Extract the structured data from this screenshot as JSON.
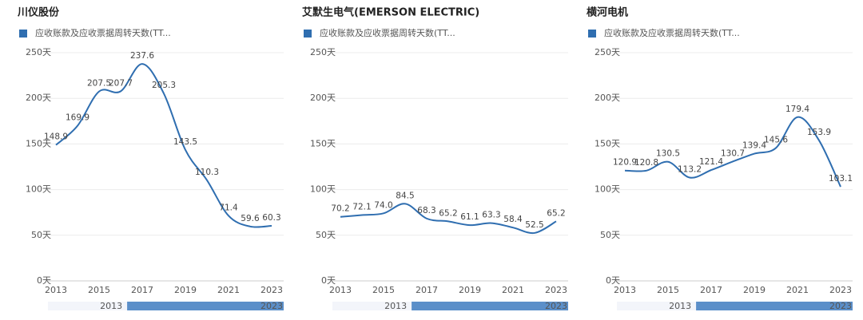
{
  "chart_data": [
    {
      "type": "line",
      "title": "川仪股份",
      "categories": [
        "2013",
        null,
        "2015",
        null,
        "2017",
        null,
        "2019",
        null,
        "2021",
        null,
        "2023"
      ],
      "series": [
        {
          "name": "应收账款及应收票据周转天数(TT...",
          "color": "#2f6eb0",
          "values": [
            148.9,
            169.9,
            207.5,
            207.7,
            237.6,
            205.3,
            143.5,
            110.3,
            71.4,
            59.6,
            60.3
          ],
          "value_labels": [
            "148.9",
            "169.9",
            "207.5",
            "207.7",
            "237.6",
            "205.3",
            "143.5",
            "110.3",
            "71.4",
            "59.6",
            "60.3"
          ]
        }
      ],
      "ylim": [
        0,
        250
      ],
      "yticks": [
        {
          "value": 0,
          "label": "0天"
        },
        {
          "value": 50,
          "label": "50天"
        },
        {
          "value": 100,
          "label": "100天"
        },
        {
          "value": 150,
          "label": "150天"
        },
        {
          "value": 200,
          "label": "200天"
        },
        {
          "value": 250,
          "label": "250天"
        }
      ],
      "grid": true,
      "slider": {
        "start": "2013",
        "end": "2023"
      }
    },
    {
      "type": "line",
      "title": "艾默生电气(EMERSON ELECTRIC)",
      "categories": [
        "2013",
        null,
        "2015",
        null,
        "2017",
        null,
        "2019",
        null,
        "2021",
        null,
        "2023"
      ],
      "series": [
        {
          "name": "应收账款及应收票据周转天数(TT...",
          "color": "#2f6eb0",
          "values": [
            70.2,
            72.1,
            74.0,
            84.5,
            68.3,
            65.2,
            61.1,
            63.3,
            58.4,
            52.5,
            65.2
          ],
          "value_labels": [
            "70.2",
            "72.1",
            "74.0",
            "84.5",
            "68.3",
            "65.2",
            "61.1",
            "63.3",
            "58.4",
            "52.5",
            "65.2"
          ]
        }
      ],
      "ylim": [
        0,
        250
      ],
      "yticks": [
        {
          "value": 0,
          "label": "0天"
        },
        {
          "value": 50,
          "label": "50天"
        },
        {
          "value": 100,
          "label": "100天"
        },
        {
          "value": 150,
          "label": "150天"
        },
        {
          "value": 200,
          "label": "200天"
        },
        {
          "value": 250,
          "label": "250天"
        }
      ],
      "grid": true,
      "slider": {
        "start": "2013",
        "end": "2023"
      }
    },
    {
      "type": "line",
      "title": "横河电机",
      "categories": [
        "2013",
        null,
        "2015",
        null,
        "2017",
        null,
        "2019",
        null,
        "2021",
        null,
        "2023"
      ],
      "series": [
        {
          "name": "应收账款及应收票据周转天数(TT...",
          "color": "#2f6eb0",
          "values": [
            120.9,
            120.8,
            130.5,
            113.2,
            121.4,
            130.7,
            139.4,
            145.6,
            179.4,
            153.9,
            103.1
          ],
          "value_labels": [
            "120.9",
            "120.8",
            "130.5",
            "113.2",
            "121.4",
            "130.7",
            "139.4",
            "145.6",
            "179.4",
            "153.9",
            "103.1"
          ]
        }
      ],
      "ylim": [
        0,
        250
      ],
      "yticks": [
        {
          "value": 0,
          "label": "0天"
        },
        {
          "value": 50,
          "label": "50天"
        },
        {
          "value": 100,
          "label": "100天"
        },
        {
          "value": 150,
          "label": "150天"
        },
        {
          "value": 200,
          "label": "200天"
        },
        {
          "value": 250,
          "label": "250天"
        }
      ],
      "grid": true,
      "slider": {
        "start": "2013",
        "end": "2023"
      }
    }
  ]
}
